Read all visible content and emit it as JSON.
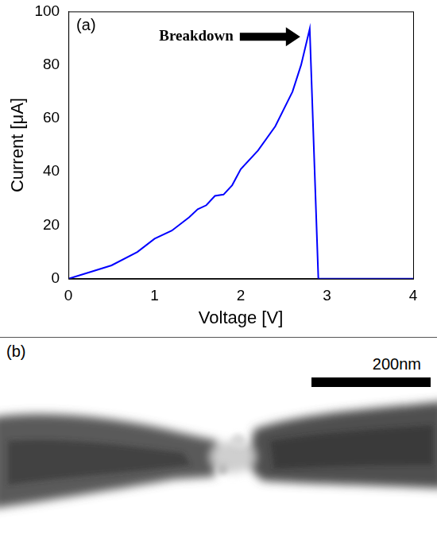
{
  "chart_data": {
    "type": "line",
    "panel": "(a)",
    "x_label": "Voltage [V]",
    "y_label": "Current [μA]",
    "x": [
      0,
      0.3,
      0.5,
      0.8,
      1.0,
      1.2,
      1.4,
      1.5,
      1.6,
      1.7,
      1.8,
      1.9,
      2.0,
      2.2,
      2.4,
      2.6,
      2.7,
      2.8,
      2.9,
      3.0,
      4.0
    ],
    "values": [
      0,
      3,
      5,
      10,
      15,
      18,
      23,
      26,
      27.5,
      31,
      31.5,
      35,
      41,
      48,
      57,
      70,
      80,
      93.5,
      0,
      0,
      0
    ],
    "color": "#0000ff",
    "xlim": [
      0,
      4
    ],
    "xticks": [
      0,
      1,
      2,
      3,
      4
    ],
    "ylim": [
      0,
      100
    ],
    "yticks": [
      0,
      20,
      40,
      60,
      80,
      100
    ],
    "grid": false,
    "annotations": [
      {
        "text": "Breakdown"
      }
    ]
  },
  "image_panel": {
    "panel": "(b)",
    "scale_bar": "200nm"
  }
}
